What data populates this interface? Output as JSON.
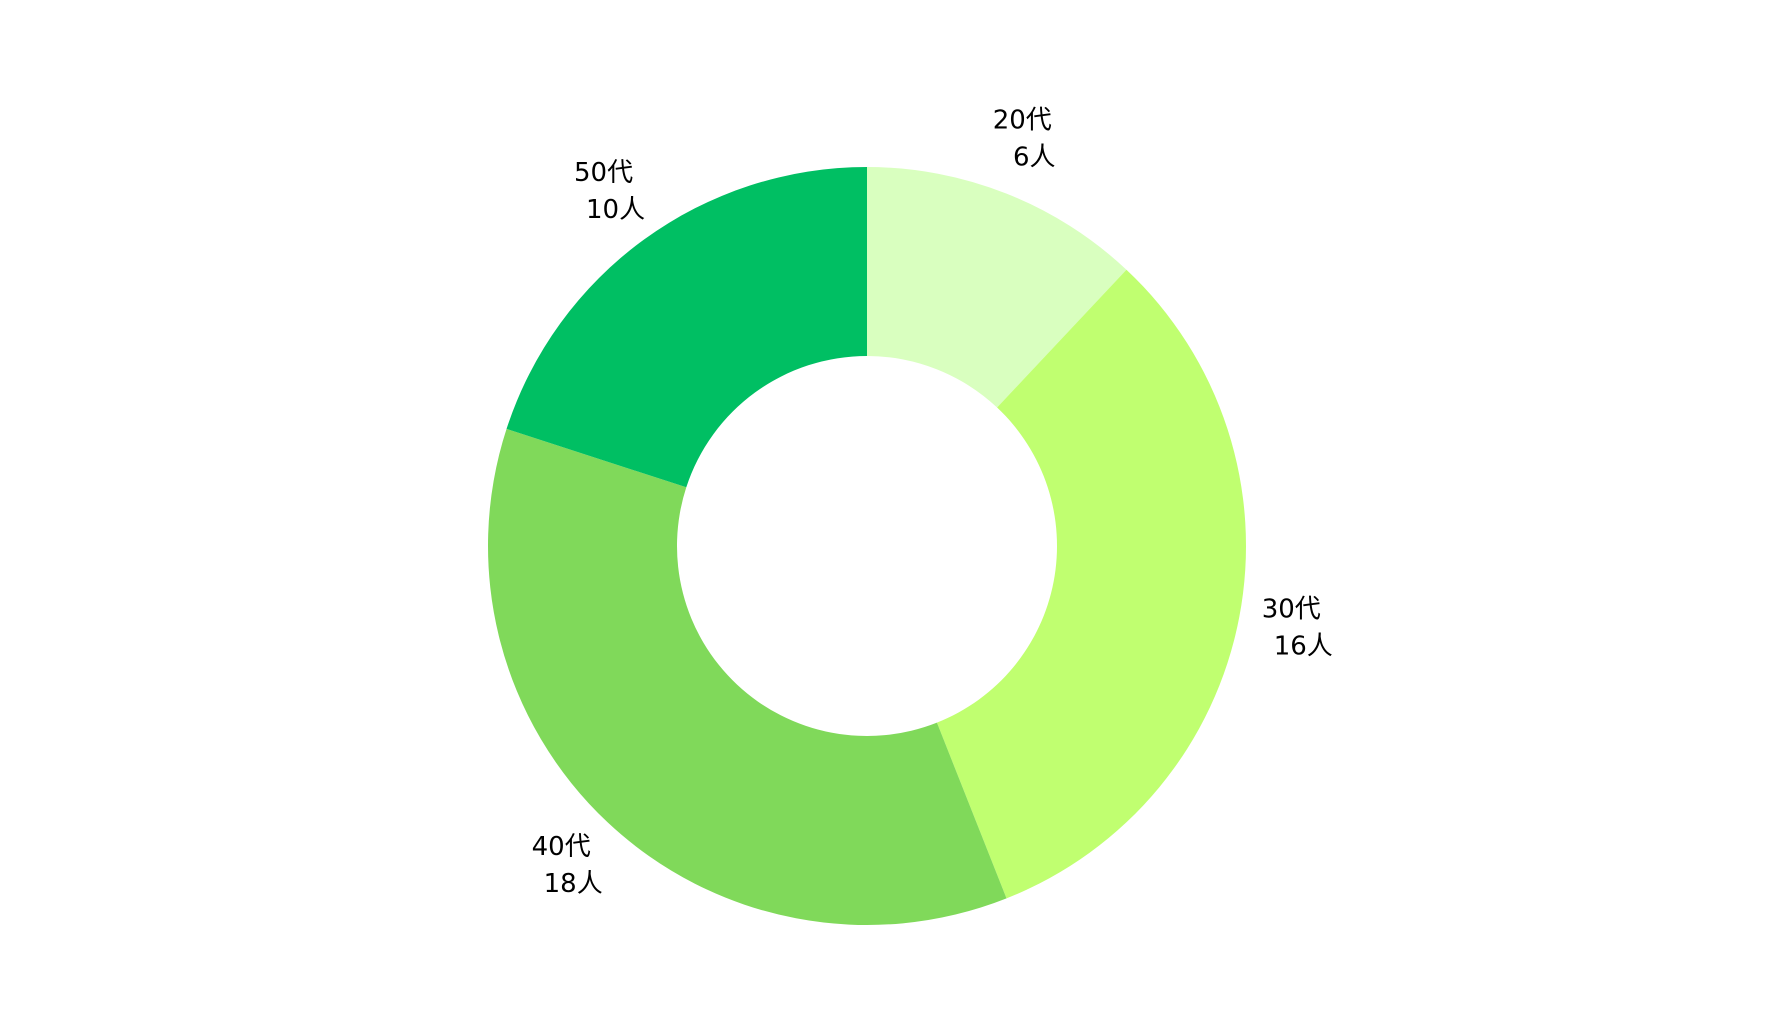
{
  "chart_data": {
    "type": "donut",
    "categories": [
      "20代",
      "30代",
      "40代",
      "50代"
    ],
    "values": [
      6,
      16,
      18,
      10
    ],
    "value_labels": [
      "6人",
      "16人",
      "18人",
      "10人"
    ],
    "colors": [
      "#d9ffbf",
      "#c0ff70",
      "#80d95a",
      "#00bf63"
    ]
  }
}
